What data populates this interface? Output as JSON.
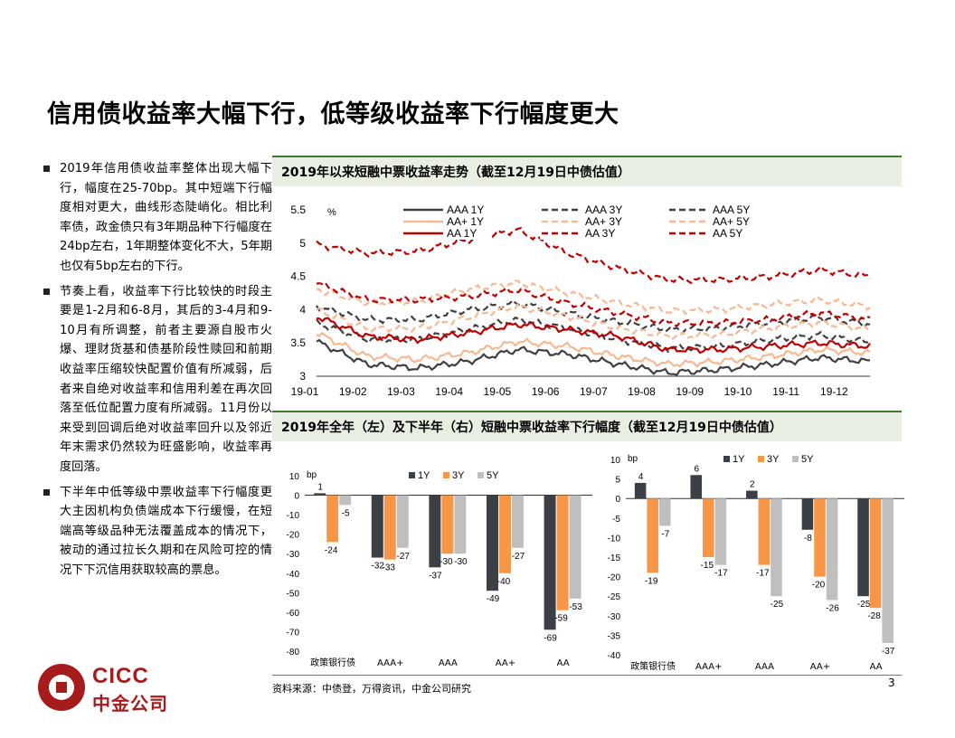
{
  "page": {
    "title": "信用债收益率大幅下行，低等级收益率下行幅度更大",
    "bullets": [
      "2019年信用债收益率整体出现大幅下行，幅度在25-70bp。其中短端下行幅度相对更大，曲线形态陡峭化。相比利率债，政金债只有3年期品种下行幅度在24bp左右，1年期整体变化不大，5年期也仅有5bp左右的下行。",
      "节奏上看，收益率下行比较快的时段主要是1-2月和6-8月，其后的3-4月和9-10月有所调整，前者主要源自股市火爆、理财货基和债基阶段性赎回和前期收益率压缩较快配置价值有所减弱，后者来自绝对收益率和信用利差在再次回落至低位配置力度有所减弱。11月份以来受到回调后绝对收益率回升以及邻近年末需求仍然较为旺盛影响，收益率再度回落。",
      "下半年中低等级中票收益率下行幅度更大主因机构负债端成本下行缓慢，在短端高等级品种无法覆盖成本的情况下，被动的通过拉长久期和在风险可控的情况下下沉信用获取较高的票息。"
    ],
    "panel1_title": "2019年以来短融中票收益率走势（截至12月19日中债估值）",
    "panel2_title": "2019年全年（左）及下半年（右）短融中票收益率下行幅度（截至12月19日中债估值）",
    "source": "资料来源：中债登，万得资讯，中金公司研究",
    "page_number": "3",
    "logo": {
      "en": "CICC",
      "cn": "中金公司"
    }
  },
  "chart_data": [
    {
      "type": "line",
      "ylabel": "%",
      "ylim": [
        3,
        5.5
      ],
      "yticks": [
        "3",
        "3.5",
        "4",
        "4.5",
        "5",
        "5.5"
      ],
      "x": [
        "19-01",
        "19-02",
        "19-03",
        "19-04",
        "19-05",
        "19-06",
        "19-07",
        "19-08",
        "19-09",
        "19-10",
        "19-11",
        "19-12"
      ],
      "series": [
        {
          "name": "AAA 1Y",
          "color": "#404040",
          "dash": "solid",
          "values": [
            3.52,
            3.18,
            3.12,
            3.22,
            3.4,
            3.33,
            3.18,
            3.05,
            3.1,
            3.18,
            3.28,
            3.22
          ]
        },
        {
          "name": "AAA 3Y",
          "color": "#404040",
          "dash": "dash",
          "values": [
            3.8,
            3.55,
            3.55,
            3.7,
            3.85,
            3.72,
            3.55,
            3.42,
            3.45,
            3.55,
            3.62,
            3.52
          ]
        },
        {
          "name": "AAA 5Y",
          "color": "#404040",
          "dash": "dash",
          "values": [
            4.05,
            3.85,
            3.85,
            4.0,
            4.1,
            3.95,
            3.82,
            3.7,
            3.72,
            3.8,
            3.88,
            3.78
          ]
        },
        {
          "name": "AA+ 1Y",
          "color": "#f6b992",
          "dash": "solid",
          "values": [
            3.65,
            3.3,
            3.25,
            3.35,
            3.52,
            3.45,
            3.3,
            3.18,
            3.22,
            3.3,
            3.4,
            3.35
          ]
        },
        {
          "name": "AA+ 3Y",
          "color": "#f6b992",
          "dash": "dash",
          "values": [
            4.0,
            3.72,
            3.72,
            3.88,
            4.05,
            3.9,
            3.72,
            3.6,
            3.62,
            3.72,
            3.8,
            3.7
          ]
        },
        {
          "name": "AA+ 5Y",
          "color": "#f6b992",
          "dash": "dash",
          "values": [
            4.3,
            4.1,
            4.12,
            4.3,
            4.4,
            4.25,
            4.1,
            3.98,
            4.0,
            4.08,
            4.15,
            4.05
          ]
        },
        {
          "name": "AA 1Y",
          "color": "#c00000",
          "dash": "solid",
          "values": [
            3.9,
            3.6,
            3.55,
            3.65,
            3.78,
            3.7,
            3.6,
            3.4,
            3.4,
            3.45,
            3.5,
            3.45
          ]
        },
        {
          "name": "AA 3Y",
          "color": "#c00000",
          "dash": "dash",
          "values": [
            4.4,
            4.15,
            4.15,
            4.2,
            4.3,
            4.1,
            3.95,
            3.8,
            3.8,
            3.85,
            3.95,
            3.85
          ]
        },
        {
          "name": "AA 5Y",
          "color": "#c00000",
          "dash": "dash",
          "values": [
            4.98,
            4.85,
            4.88,
            5.05,
            5.2,
            4.85,
            4.62,
            4.45,
            4.45,
            4.5,
            4.6,
            4.5
          ]
        }
      ]
    },
    {
      "type": "bar",
      "ylabel": "bp",
      "ylim": [
        -80,
        10
      ],
      "yticks": [
        "-80",
        "-70",
        "-60",
        "-50",
        "-40",
        "-30",
        "-20",
        "-10",
        "0",
        "10"
      ],
      "categories": [
        "政策银行债",
        "AAA+",
        "AAA",
        "AA+",
        "AA"
      ],
      "series": [
        {
          "name": "1Y",
          "color": "#3b3f46",
          "values": [
            1,
            -32,
            -37,
            -49,
            -69
          ]
        },
        {
          "name": "3Y",
          "color": "#f79646",
          "values": [
            -24,
            -33,
            -30,
            -40,
            -59
          ]
        },
        {
          "name": "5Y",
          "color": "#bfbfbf",
          "values": [
            -5,
            -27,
            -30,
            -27,
            -53
          ]
        }
      ],
      "labels": [
        [
          "1",
          "-32",
          "-37",
          "-49",
          "-69"
        ],
        [
          "-24",
          "-33",
          "-30",
          "-40",
          "-59"
        ],
        [
          "-5",
          "-27",
          "-30",
          "-27",
          "-53"
        ]
      ]
    },
    {
      "type": "bar",
      "ylabel": "bp",
      "ylim": [
        -40,
        10
      ],
      "yticks": [
        "-40",
        "-35",
        "-30",
        "-25",
        "-20",
        "-15",
        "-10",
        "-5",
        "0",
        "5",
        "10"
      ],
      "categories": [
        "政策银行债",
        "AAA+",
        "AAA",
        "AA+",
        "AA"
      ],
      "series": [
        {
          "name": "1Y",
          "color": "#3b3f46",
          "values": [
            4,
            6,
            2,
            -8,
            -25
          ]
        },
        {
          "name": "3Y",
          "color": "#f79646",
          "values": [
            -19,
            -15,
            -17,
            -20,
            -28
          ]
        },
        {
          "name": "5Y",
          "color": "#bfbfbf",
          "values": [
            -7,
            -17,
            -25,
            -26,
            -37
          ]
        }
      ],
      "labels": [
        [
          "4",
          "6",
          "2",
          "-8",
          "-25"
        ],
        [
          "-19",
          "-15",
          "-17",
          "-20",
          "-28"
        ],
        [
          "-7",
          "-17",
          "-25",
          "-26",
          "-37"
        ]
      ]
    }
  ]
}
